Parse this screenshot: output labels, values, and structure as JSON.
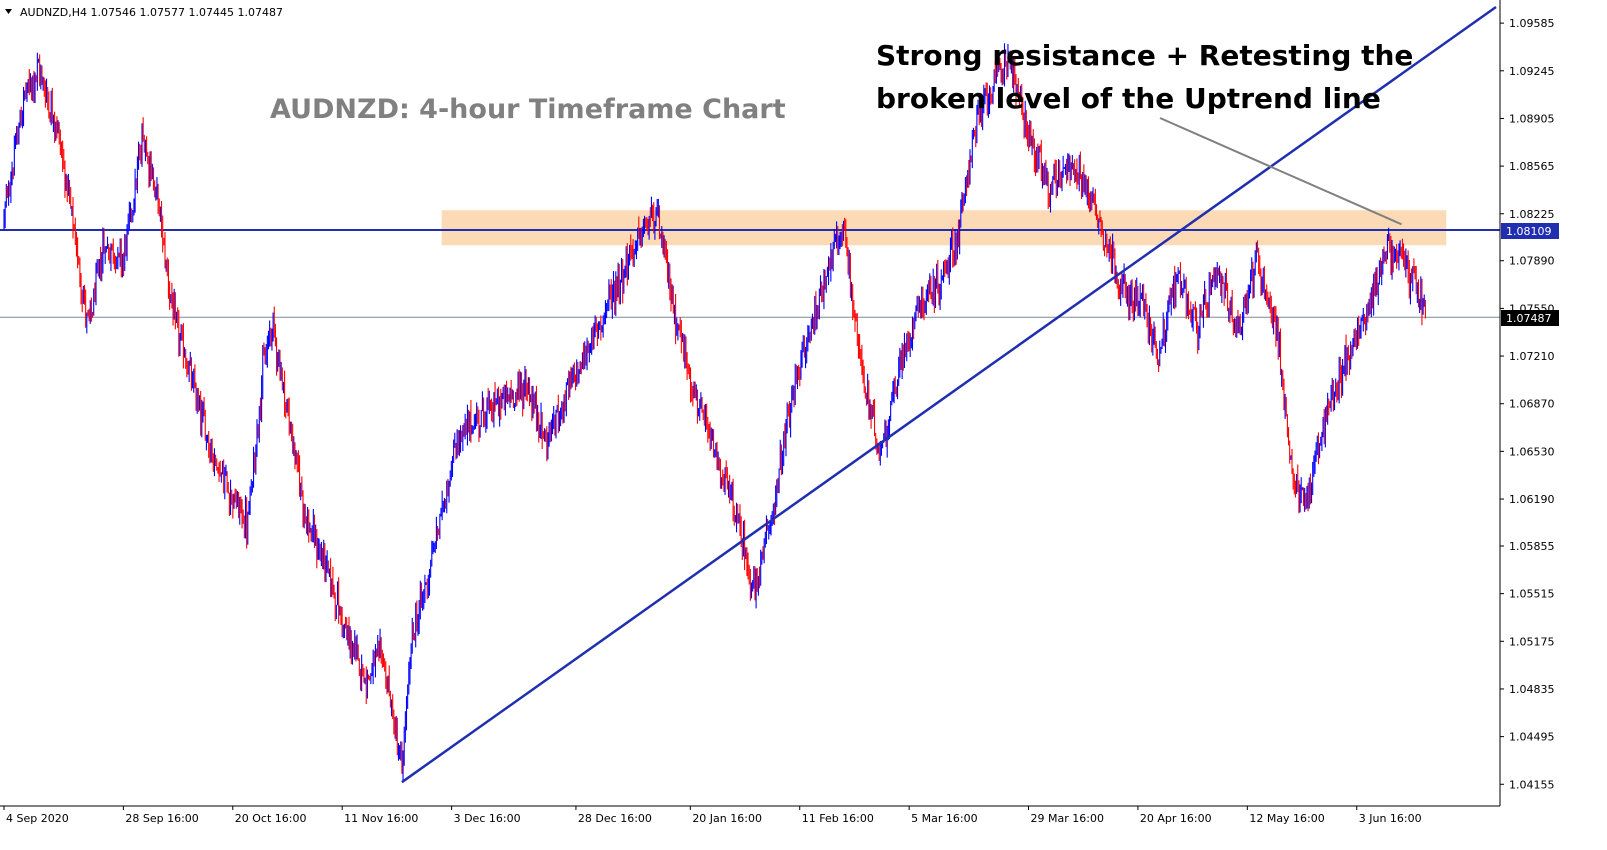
{
  "header": {
    "symbol_line": "AUDNZD,H4  1.07546 1.07577 1.07445 1.07487",
    "dropdown_icon": "triangle-down-icon"
  },
  "colors": {
    "background": "#ffffff",
    "bull_candle": "#0000ff",
    "bear_candle": "#ff0000",
    "trendline": "#1f2fb0",
    "resistance_line": "#1f2fb0",
    "zone_fill": "#fbd3a8",
    "current_price_line": "#7f8c9a",
    "annotation_arrow": "#808080",
    "axis": "#000000"
  },
  "chart_data": {
    "type": "candlestick",
    "title": "AUDNZD: 4-hour Timeframe Chart",
    "annotation": [
      "Strong resistance + Retesting the",
      "broken level of the Uptrend line"
    ],
    "ylim": [
      1.04,
      1.0975
    ],
    "y_ticks": [
      "1.09585",
      "1.09245",
      "1.08905",
      "1.08565",
      "1.08225",
      "1.07890",
      "1.07550",
      "1.07210",
      "1.06870",
      "1.06530",
      "1.06190",
      "1.05855",
      "1.05515",
      "1.05175",
      "1.04835",
      "1.04495",
      "1.04155"
    ],
    "x_ticks": [
      "4 Sep 2020",
      "28 Sep 16:00",
      "20 Oct 16:00",
      "11 Nov 16:00",
      "3 Dec 16:00",
      "28 Dec 16:00",
      "20 Jan 16:00",
      "11 Feb 16:00",
      "5 Mar 16:00",
      "29 Mar 16:00",
      "20 Apr 16:00",
      "12 May 16:00",
      "3 Jun 16:00"
    ],
    "current_price": 1.07487,
    "current_price_label": "1.07487",
    "resistance_level": 1.08109,
    "resistance_label": "1.08109",
    "resistance_zone": [
      1.08,
      1.0825
    ],
    "trendline": {
      "from": {
        "date": "23 Nov 2020",
        "price": 1.0417
      },
      "to": {
        "date": "1 Jul 2021",
        "price": 1.097
      }
    },
    "grid": false,
    "path_anchors": [
      [
        "4 Sep 2020",
        1.082
      ],
      [
        "8 Sep 2020",
        1.0905
      ],
      [
        "11 Sep 2020",
        1.0925
      ],
      [
        "15 Sep 2020",
        1.088
      ],
      [
        "18 Sep 2020",
        1.081
      ],
      [
        "21 Sep 2020",
        1.074
      ],
      [
        "24 Sep 2020",
        1.08
      ],
      [
        "28 Sep 2020",
        1.079
      ],
      [
        "2 Oct 2020",
        1.088
      ],
      [
        "5 Oct 2020",
        1.083
      ],
      [
        "8 Oct 2020",
        1.075
      ],
      [
        "12 Oct 2020",
        1.07
      ],
      [
        "16 Oct 2020",
        1.065
      ],
      [
        "20 Oct 2020",
        1.062
      ],
      [
        "23 Oct 2020",
        1.06
      ],
      [
        "26 Oct 2020",
        1.071
      ],
      [
        "28 Oct 2020",
        1.0745
      ],
      [
        "31 Oct 2020",
        1.068
      ],
      [
        "4 Nov 2020",
        1.06
      ],
      [
        "8 Nov 2020",
        1.057
      ],
      [
        "12 Nov 2020",
        1.052
      ],
      [
        "16 Nov 2020",
        1.049
      ],
      [
        "19 Nov 2020",
        1.051
      ],
      [
        "23 Nov 2020",
        1.0425
      ],
      [
        "25 Nov 2020",
        1.052
      ],
      [
        "28 Nov 2020",
        1.056
      ],
      [
        "1 Dec 2020",
        1.061
      ],
      [
        "4 Dec 2020",
        1.066
      ],
      [
        "9 Dec 2020",
        1.068
      ],
      [
        "14 Dec 2020",
        1.069
      ],
      [
        "18 Dec 2020",
        1.07
      ],
      [
        "22 Dec 2020",
        1.066
      ],
      [
        "27 Dec 2020",
        1.07
      ],
      [
        "31 Dec 2020",
        1.073
      ],
      [
        "5 Jan 2021",
        1.077
      ],
      [
        "9 Jan 2021",
        1.08
      ],
      [
        "13 Jan 2021",
        1.0825
      ],
      [
        "17 Jan 2021",
        1.075
      ],
      [
        "21 Jan 2021",
        1.069
      ],
      [
        "25 Jan 2021",
        1.065
      ],
      [
        "29 Jan 2021",
        1.061
      ],
      [
        "2 Feb 2021",
        1.055
      ],
      [
        "6 Feb 2021",
        1.062
      ],
      [
        "10 Feb 2021",
        1.07
      ],
      [
        "14 Feb 2021",
        1.075
      ],
      [
        "17 Feb 2021",
        1.079
      ],
      [
        "20 Feb 2021",
        1.081
      ],
      [
        "23 Feb 2021",
        1.072
      ],
      [
        "27 Feb 2021",
        1.065
      ],
      [
        "3 Mar 2021",
        1.071
      ],
      [
        "7 Mar 2021",
        1.076
      ],
      [
        "11 Mar 2021",
        1.077
      ],
      [
        "15 Mar 2021",
        1.081
      ],
      [
        "18 Mar 2021",
        1.088
      ],
      [
        "21 Mar 2021",
        1.091
      ],
      [
        "25 Mar 2021",
        1.0935
      ],
      [
        "29 Mar 2021",
        1.088
      ],
      [
        "2 Apr 2021",
        1.084
      ],
      [
        "6 Apr 2021",
        1.086
      ],
      [
        "10 Apr 2021",
        1.084
      ],
      [
        "14 Apr 2021",
        1.08
      ],
      [
        "18 Apr 2021",
        1.076
      ],
      [
        "21 Apr 2021",
        1.076
      ],
      [
        "24 Apr 2021",
        1.072
      ],
      [
        "28 Apr 2021",
        1.078
      ],
      [
        "2 May 2021",
        1.074
      ],
      [
        "6 May 2021",
        1.078
      ],
      [
        "10 May 2021",
        1.074
      ],
      [
        "14 May 2021",
        1.079
      ],
      [
        "18 May 2021",
        1.074
      ],
      [
        "21 May 2021",
        1.063
      ],
      [
        "24 May 2021",
        1.062
      ],
      [
        "28 May 2021",
        1.068
      ],
      [
        "1 Jun 2021",
        1.072
      ],
      [
        "5 Jun 2021",
        1.075
      ],
      [
        "9 Jun 2021",
        1.08
      ],
      [
        "12 Jun 2021",
        1.079
      ],
      [
        "15 Jun 2021",
        1.077
      ],
      [
        "17 Jun 2021",
        1.07487
      ]
    ]
  }
}
